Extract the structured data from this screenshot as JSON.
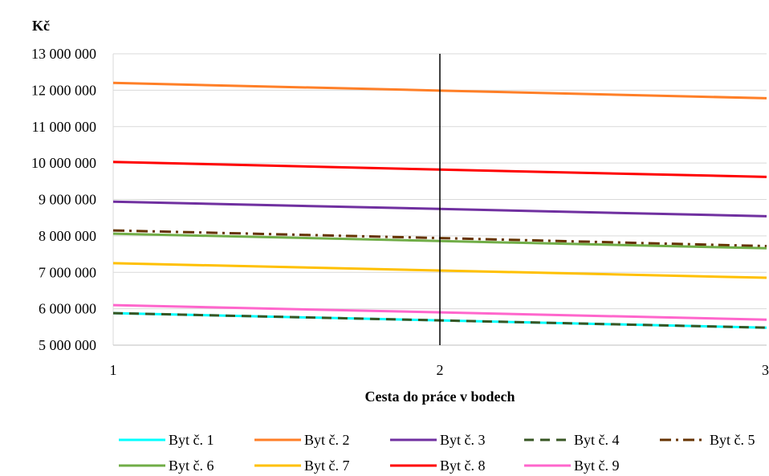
{
  "chart_data": {
    "type": "line",
    "title": "",
    "ylabel": "Kč",
    "xlabel": "Cesta do práce v bodech",
    "x": [
      1,
      2,
      3
    ],
    "xlim": [
      1,
      3
    ],
    "ylim": [
      5000000,
      13000000
    ],
    "yticks": [
      5000000,
      6000000,
      7000000,
      8000000,
      9000000,
      10000000,
      11000000,
      12000000,
      13000000
    ],
    "ytick_labels": [
      "5 000 000",
      "6 000 000",
      "7 000 000",
      "8 000 000",
      "9 000 000",
      "10 000 000",
      "11 000 000",
      "12 000 000",
      "13 000 000"
    ],
    "xtick_labels": [
      "1",
      "2",
      "3"
    ],
    "grid": "horizontal",
    "vertical_marker_x": 2,
    "legend_position": "bottom",
    "series": [
      {
        "name": "Byt č. 1",
        "color": "#00FFFF",
        "dash": "solid",
        "values": [
          5880000,
          5680000,
          5480000
        ]
      },
      {
        "name": "Byt č. 2",
        "color": "#FF7F27",
        "dash": "solid",
        "values": [
          12200000,
          11990000,
          11780000
        ]
      },
      {
        "name": "Byt č. 3",
        "color": "#7030A0",
        "dash": "solid",
        "values": [
          8940000,
          8740000,
          8540000
        ]
      },
      {
        "name": "Byt č. 4",
        "color": "#375623",
        "dash": "dash",
        "values": [
          5880000,
          5680000,
          5480000
        ]
      },
      {
        "name": "Byt č. 5",
        "color": "#663300",
        "dash": "dashdot",
        "values": [
          8150000,
          7940000,
          7720000
        ]
      },
      {
        "name": "Byt č. 6",
        "color": "#70AD47",
        "dash": "solid",
        "values": [
          8060000,
          7860000,
          7660000
        ]
      },
      {
        "name": "Byt č. 7",
        "color": "#FFC000",
        "dash": "solid",
        "values": [
          7250000,
          7050000,
          6850000
        ]
      },
      {
        "name": "Byt č. 8",
        "color": "#FF0000",
        "dash": "solid",
        "values": [
          10030000,
          9820000,
          9620000
        ]
      },
      {
        "name": "Byt č. 9",
        "color": "#FF66CC",
        "dash": "solid",
        "values": [
          6100000,
          5900000,
          5700000
        ]
      }
    ]
  }
}
